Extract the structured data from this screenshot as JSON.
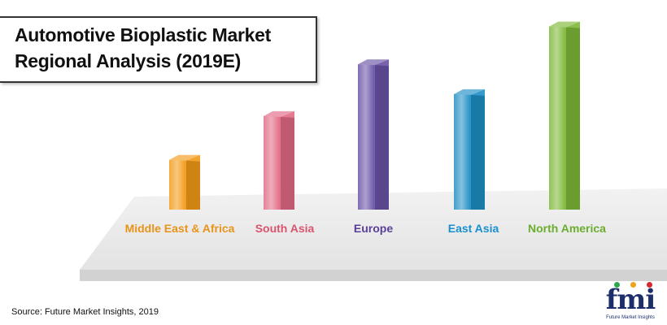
{
  "title": {
    "line1": "Automotive Bioplastic Market",
    "line2": "Regional Analysis (2019E)"
  },
  "source": "Source: Future Market Insights, 2019",
  "logo": {
    "name": "fmi",
    "tagline": "Future Market Insights"
  },
  "chart_data": {
    "type": "bar",
    "title": "Automotive Bioplastic Market Regional Analysis (2019E)",
    "categories": [
      "Middle East & Africa",
      "South Asia",
      "Europe",
      "East Asia",
      "North America"
    ],
    "values": [
      2.5,
      4.7,
      7.3,
      5.8,
      9.2
    ],
    "colors": [
      "#f39a16",
      "#e26a86",
      "#6a52a6",
      "#1f8fc4",
      "#7db837"
    ],
    "label_colors": [
      "#e8941a",
      "#d9546f",
      "#5a3f99",
      "#1a8fd0",
      "#6bad2e"
    ],
    "ylim": [
      0,
      10
    ],
    "value_labels": false,
    "grid": false,
    "legend": "none"
  }
}
